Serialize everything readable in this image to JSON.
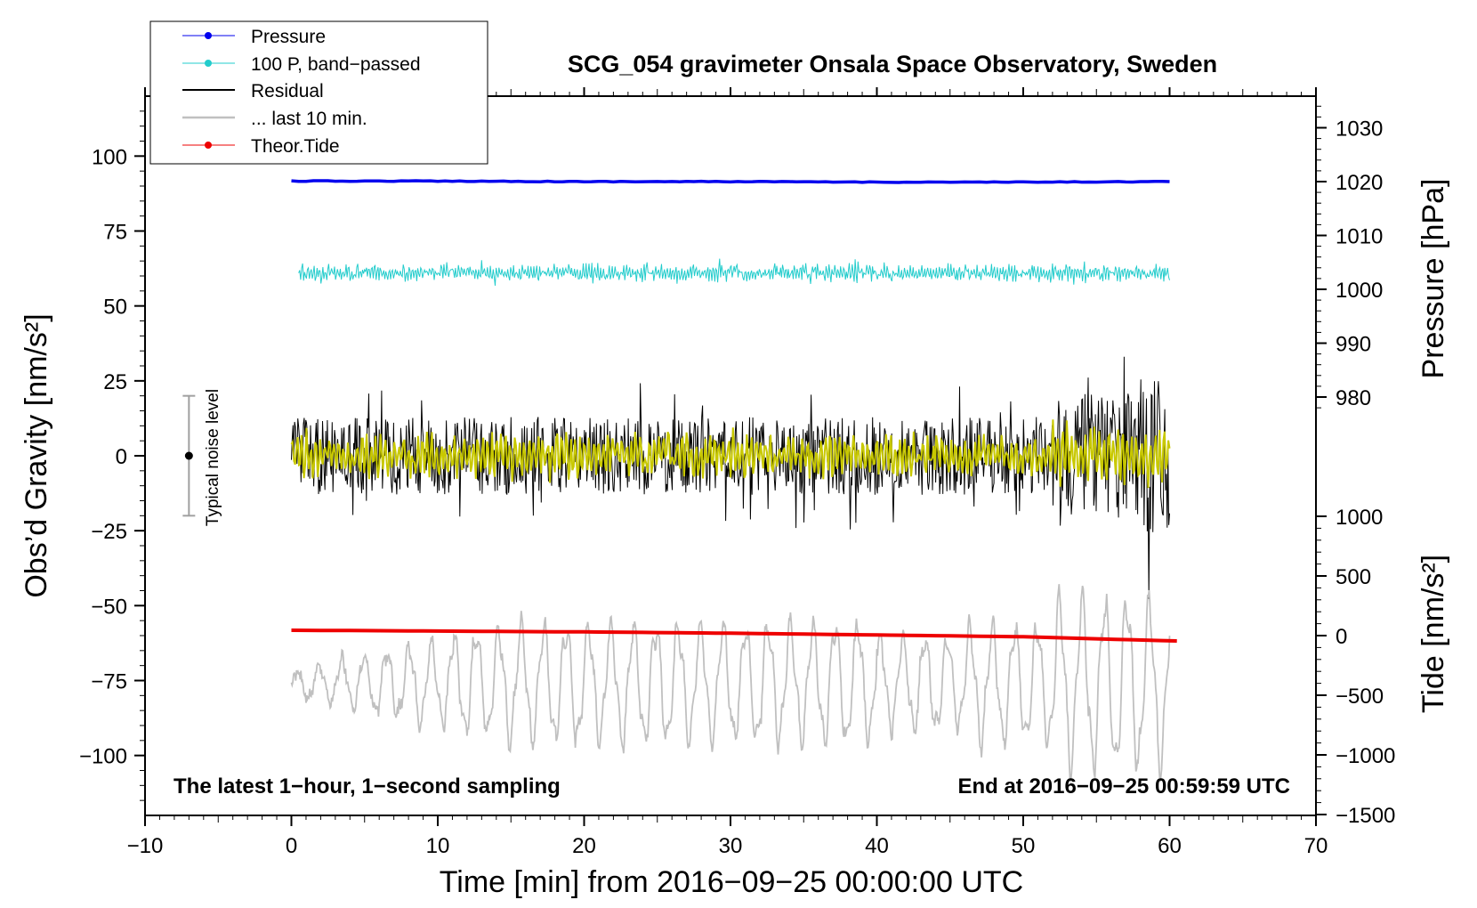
{
  "chart_data": {
    "type": "line",
    "title": "SCG_054 gravimeter Onsala Space Observatory, Sweden",
    "xlabel": "Time [min] from 2016−09−25 00:00:00 UTC",
    "ylabel_left": "Obs’d Gravity [nm/s²]",
    "ylabel_right_top": "Pressure [hPa]",
    "ylabel_right_bottom": "Tide [nm/s²]",
    "xlim": [
      -10,
      70
    ],
    "ylim_left": [
      -120,
      120
    ],
    "xticks": [
      "−10",
      "0",
      "10",
      "20",
      "30",
      "40",
      "50",
      "60",
      "70"
    ],
    "yticks_left": [
      "100",
      "75",
      "50",
      "25",
      "0",
      "−25",
      "−50",
      "−75",
      "−100"
    ],
    "yticks_pressure": [
      "1030",
      "1020",
      "1010",
      "1000",
      "990",
      "980"
    ],
    "yticks_tide": [
      "1000",
      "500",
      "0",
      "−500",
      "−1000",
      "−1500"
    ],
    "legend": [
      "Pressure",
      "100 P, band−passed",
      "Residual",
      "... last 10 min.",
      "Theor.Tide"
    ],
    "annotations": {
      "left": "The latest 1−hour, 1−second sampling",
      "right": "End at 2016−09−25 00:59:59 UTC",
      "noise": "Typical noise level"
    },
    "colors": {
      "pressure": "#0000ee",
      "bandpassed": "#22cccc",
      "residual": "#000000",
      "last10": "#c0c0c0",
      "tide": "#ee0000",
      "yellow": "#c8c800"
    },
    "series": [
      {
        "name": "Pressure",
        "unit": "hPa",
        "x": [
          0,
          10,
          20,
          30,
          40,
          50,
          60
        ],
        "values": [
          1020.1,
          1020.1,
          1020.0,
          1020.0,
          1019.9,
          1019.9,
          1020.0
        ]
      },
      {
        "name": "Theor.Tide",
        "unit": "nm/s²",
        "x": [
          0,
          10,
          20,
          30,
          40,
          50,
          60.5
        ],
        "values": [
          45,
          38,
          31,
          20,
          5,
          -10,
          -45
        ]
      },
      {
        "name": "100 P, band−passed",
        "unit": "nm/s²",
        "x_range": [
          0.5,
          60
        ],
        "center": 61,
        "amplitude": 3
      },
      {
        "name": "Residual",
        "unit": "nm/s²",
        "x_range": [
          0,
          60
        ],
        "center": 0,
        "amplitude": 13
      },
      {
        "name": "... last 10 min.",
        "unit": "nm/s²",
        "x_range": [
          0,
          60
        ],
        "center": -76,
        "amplitude": 14
      }
    ],
    "noise_bar": {
      "x": -7,
      "center": 0,
      "range": [
        -20,
        20
      ]
    }
  }
}
